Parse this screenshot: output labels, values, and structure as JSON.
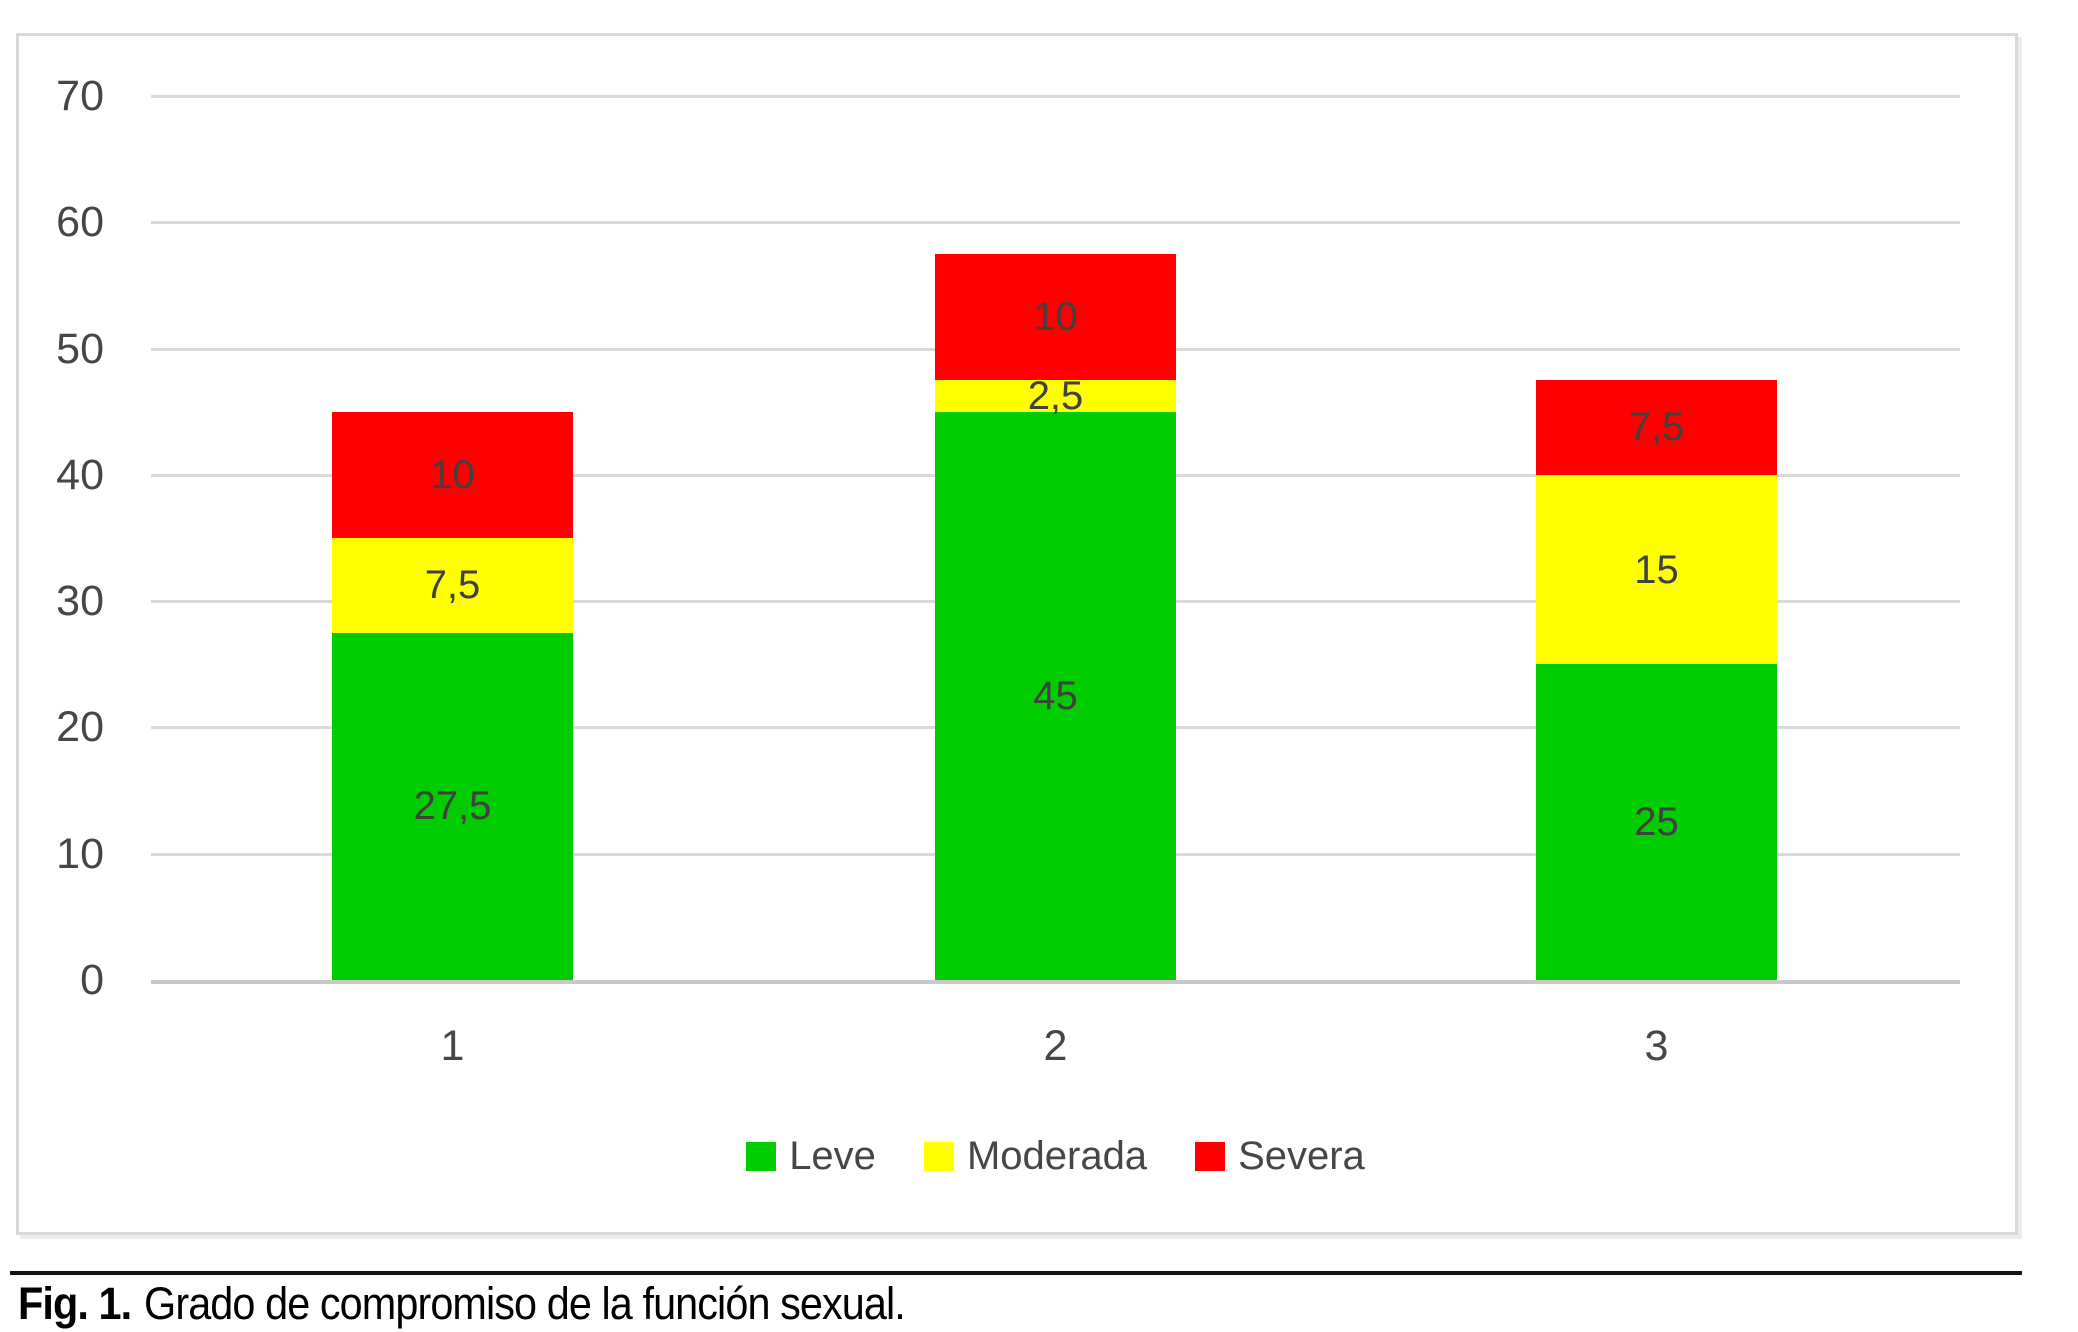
{
  "figure": {
    "caption_prefix": "Fig. 1.",
    "caption_text": "Grado de compromiso de la función sexual."
  },
  "chart_data": {
    "type": "bar",
    "stacked": true,
    "title": "",
    "xlabel": "",
    "ylabel": "",
    "grid": true,
    "legend_position": "bottom",
    "categories": [
      "1",
      "2",
      "3"
    ],
    "series": [
      {
        "name": "Leve",
        "color": "#00CC00",
        "values": [
          27.5,
          45,
          25
        ],
        "labels": [
          "27,5",
          "45",
          "25"
        ]
      },
      {
        "name": "Moderada",
        "color": "#FFFF00",
        "values": [
          7.5,
          2.5,
          15
        ],
        "labels": [
          "7,5",
          "2,5",
          "15"
        ]
      },
      {
        "name": "Severa",
        "color": "#FF0000",
        "values": [
          10,
          10,
          7.5
        ],
        "labels": [
          "10",
          "10",
          "7,5"
        ]
      }
    ],
    "y_axis": {
      "min": 0,
      "max": 70,
      "step": 10,
      "tick_labels": [
        "0",
        "10",
        "20",
        "30",
        "40",
        "50",
        "60",
        "70"
      ]
    },
    "totals": [
      45,
      57.5,
      47.5
    ]
  },
  "style_colors": {
    "gridline": "#DADADA",
    "axis_text": "#464646",
    "bar_label_text": "#404040",
    "caption_rule": "#141414"
  }
}
